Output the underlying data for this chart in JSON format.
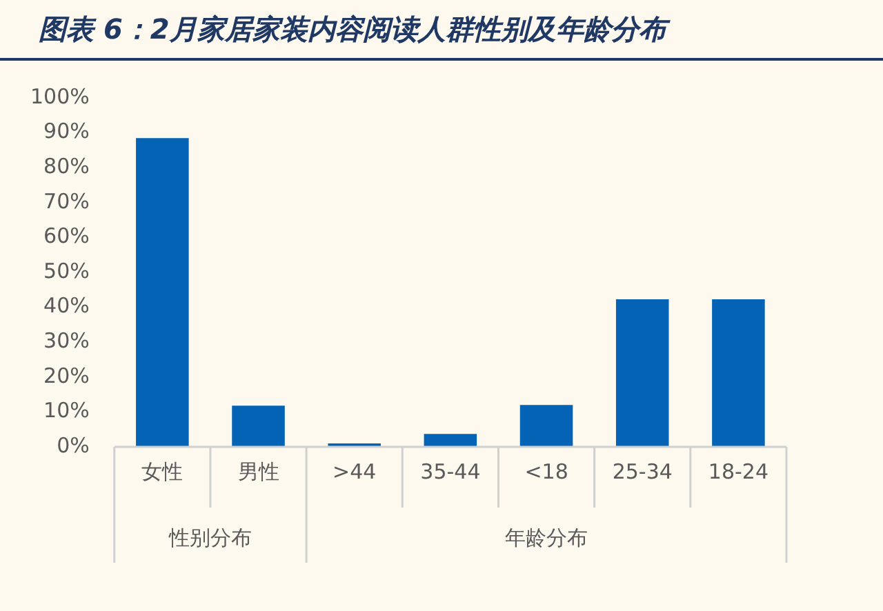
{
  "chart_data": {
    "type": "bar",
    "title": "图表 6：2月家居家装内容阅读人群性别及年龄分布",
    "categories": [
      "女性",
      "男性",
      ">44",
      "35-44",
      "<18",
      "25-34",
      "18-24"
    ],
    "values": [
      88.5,
      11.8,
      1,
      3.7,
      12,
      42.3,
      42.3
    ],
    "color": "#0563b5",
    "ylim": [
      0,
      100
    ],
    "yticks": [
      {
        "value": 0,
        "label": "0%"
      },
      {
        "value": 10,
        "label": "10%"
      },
      {
        "value": 20,
        "label": "20%"
      },
      {
        "value": 30,
        "label": "30%"
      },
      {
        "value": 40,
        "label": "40%"
      },
      {
        "value": 50,
        "label": "50%"
      },
      {
        "value": 60,
        "label": "60%"
      },
      {
        "value": 70,
        "label": "70%"
      },
      {
        "value": 80,
        "label": "80%"
      },
      {
        "value": 90,
        "label": "90%"
      },
      {
        "value": 100,
        "label": "100%"
      }
    ],
    "grid": false,
    "legend": false,
    "annotations": [
      "性别分布",
      "年龄分布"
    ]
  }
}
